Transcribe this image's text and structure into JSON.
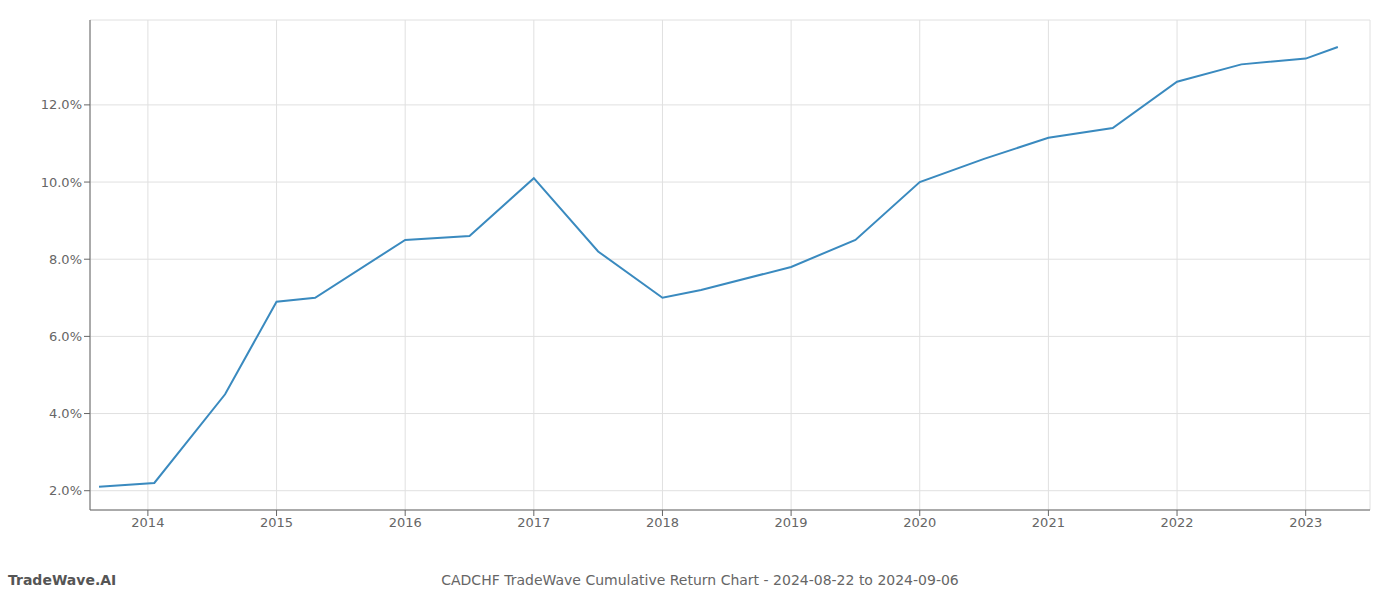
{
  "chart_data": {
    "type": "line",
    "title": "CADCHF TradeWave Cumulative Return Chart - 2024-08-22 to 2024-09-06",
    "annotations": [
      "TradeWave.AI"
    ],
    "x": [
      2013.62,
      2014.05,
      2014.6,
      2015.0,
      2015.3,
      2016.0,
      2016.5,
      2017.0,
      2017.5,
      2018.0,
      2018.3,
      2019.0,
      2019.5,
      2020.0,
      2020.5,
      2021.0,
      2021.5,
      2022.0,
      2022.5,
      2023.0,
      2023.25
    ],
    "values": [
      2.1,
      2.2,
      4.5,
      6.9,
      7.0,
      8.5,
      8.6,
      10.1,
      8.2,
      7.0,
      7.2,
      7.8,
      8.5,
      10.0,
      10.6,
      11.15,
      11.4,
      12.6,
      13.05,
      13.2,
      13.5
    ],
    "color": "#3a8abf",
    "xlim": [
      2013.55,
      2023.5
    ],
    "xticks": [
      2014,
      2015,
      2016,
      2017,
      2018,
      2019,
      2020,
      2021,
      2022,
      2023
    ],
    "ylim": [
      1.5,
      14.2
    ],
    "yticks": [
      {
        "value": 2.0,
        "label": "2.0%"
      },
      {
        "value": 4.0,
        "label": "4.0%"
      },
      {
        "value": 6.0,
        "label": "6.0%"
      },
      {
        "value": 8.0,
        "label": "8.0%"
      },
      {
        "value": 10.0,
        "label": "10.0%"
      },
      {
        "value": 12.0,
        "label": "12.0%"
      }
    ],
    "grid": true
  }
}
